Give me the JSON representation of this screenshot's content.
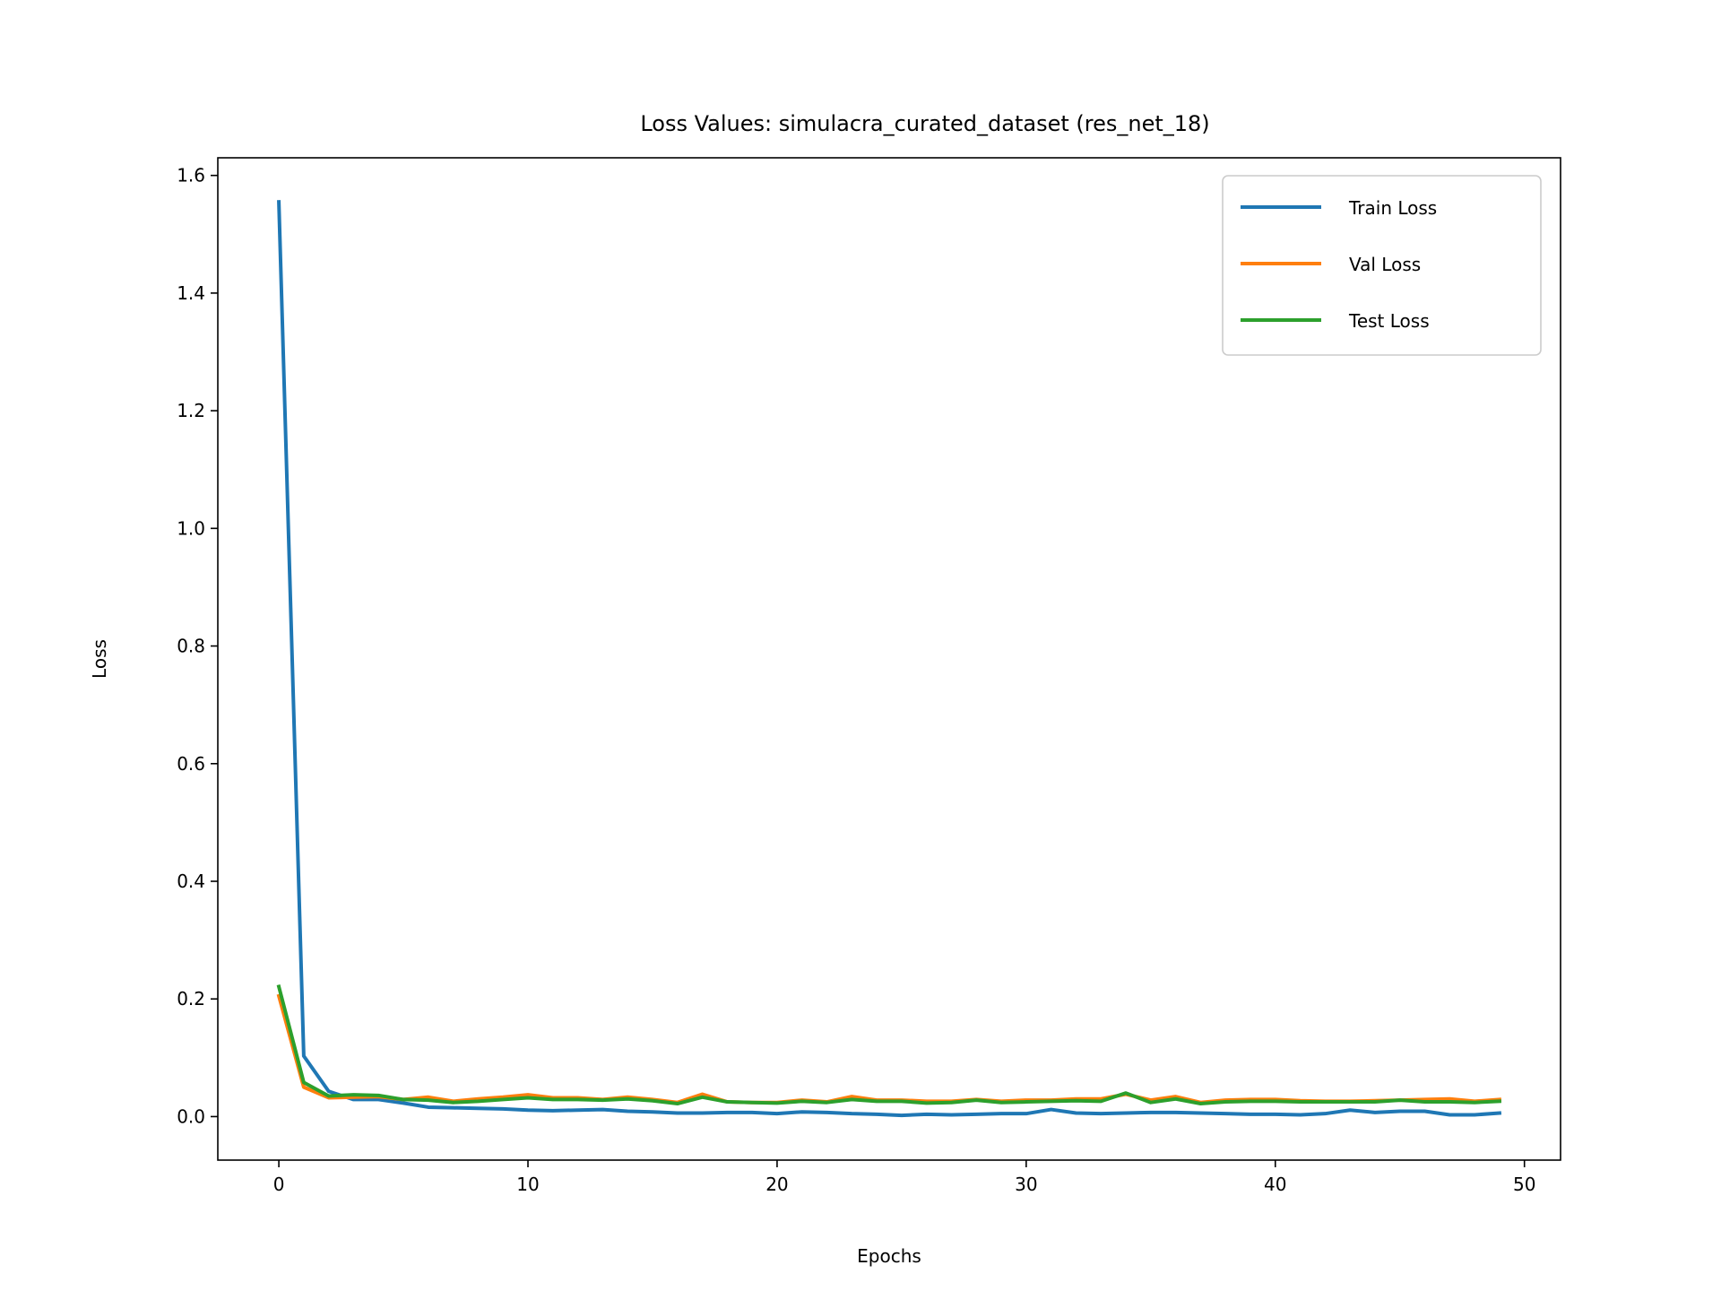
{
  "chart_data": {
    "type": "line",
    "title": "Loss Values: simulacra_curated_dataset (res_net_18)",
    "xlabel": "Epochs",
    "ylabel": "Loss",
    "xlim": [
      -2.45,
      51.45
    ],
    "ylim": [
      -0.074,
      1.63
    ],
    "xticks": [
      0,
      10,
      20,
      30,
      40,
      50
    ],
    "xtick_labels": [
      "0",
      "10",
      "20",
      "30",
      "40",
      "50"
    ],
    "yticks": [
      0.0,
      0.2,
      0.4,
      0.6,
      0.8,
      1.0,
      1.2,
      1.4,
      1.6
    ],
    "ytick_labels": [
      "0.0",
      "0.2",
      "0.4",
      "0.6",
      "0.8",
      "1.0",
      "1.2",
      "1.4",
      "1.6"
    ],
    "grid": false,
    "legend_position": "upper right",
    "x": [
      0,
      1,
      2,
      3,
      4,
      5,
      6,
      7,
      8,
      9,
      10,
      11,
      12,
      13,
      14,
      15,
      16,
      17,
      18,
      19,
      20,
      21,
      22,
      23,
      24,
      25,
      26,
      27,
      28,
      29,
      30,
      31,
      32,
      33,
      34,
      35,
      36,
      37,
      38,
      39,
      40,
      41,
      42,
      43,
      44,
      45,
      46,
      47,
      48,
      49
    ],
    "series": [
      {
        "name": "Train Loss",
        "color": "#1f77b4",
        "values": [
          1.555,
          0.103,
          0.043,
          0.029,
          0.029,
          0.023,
          0.016,
          0.015,
          0.014,
          0.013,
          0.011,
          0.01,
          0.011,
          0.012,
          0.009,
          0.008,
          0.006,
          0.006,
          0.007,
          0.007,
          0.005,
          0.008,
          0.007,
          0.005,
          0.004,
          0.002,
          0.004,
          0.003,
          0.004,
          0.005,
          0.005,
          0.012,
          0.006,
          0.005,
          0.006,
          0.007,
          0.007,
          0.006,
          0.005,
          0.004,
          0.004,
          0.003,
          0.005,
          0.011,
          0.007,
          0.009,
          0.009,
          0.003,
          0.003,
          0.006
        ]
      },
      {
        "name": "Val Loss",
        "color": "#ff7f0e",
        "values": [
          0.205,
          0.05,
          0.032,
          0.033,
          0.034,
          0.029,
          0.033,
          0.026,
          0.03,
          0.033,
          0.037,
          0.032,
          0.032,
          0.029,
          0.033,
          0.029,
          0.024,
          0.038,
          0.025,
          0.024,
          0.024,
          0.028,
          0.025,
          0.034,
          0.028,
          0.028,
          0.026,
          0.026,
          0.029,
          0.026,
          0.028,
          0.028,
          0.03,
          0.03,
          0.038,
          0.028,
          0.034,
          0.024,
          0.028,
          0.029,
          0.029,
          0.027,
          0.026,
          0.026,
          0.027,
          0.028,
          0.029,
          0.03,
          0.026,
          0.029
        ]
      },
      {
        "name": "Test Loss",
        "color": "#2ca02c",
        "values": [
          0.221,
          0.058,
          0.035,
          0.037,
          0.036,
          0.029,
          0.028,
          0.024,
          0.026,
          0.029,
          0.032,
          0.029,
          0.029,
          0.028,
          0.03,
          0.027,
          0.022,
          0.033,
          0.025,
          0.024,
          0.023,
          0.026,
          0.024,
          0.029,
          0.026,
          0.026,
          0.023,
          0.024,
          0.028,
          0.024,
          0.025,
          0.026,
          0.027,
          0.026,
          0.04,
          0.024,
          0.03,
          0.022,
          0.025,
          0.026,
          0.026,
          0.025,
          0.025,
          0.025,
          0.025,
          0.028,
          0.025,
          0.025,
          0.024,
          0.026
        ]
      }
    ]
  }
}
